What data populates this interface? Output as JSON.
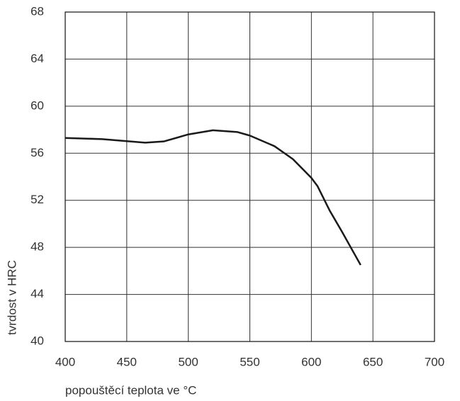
{
  "chart_data": {
    "type": "line",
    "x_label": "popouštěcí teplota ve °C",
    "y_label": "tvrdost v HRC",
    "series": [
      {
        "color": "#1a1a1a",
        "x": [
          400,
          430,
          465,
          480,
          500,
          520,
          540,
          550,
          570,
          585,
          600,
          605,
          615,
          625,
          640
        ],
        "values": [
          57.3,
          57.2,
          56.9,
          57.0,
          57.6,
          57.95,
          57.8,
          57.5,
          56.6,
          55.5,
          53.9,
          53.2,
          51.1,
          49.3,
          46.5
        ]
      }
    ],
    "xlim": [
      400,
      700
    ],
    "xticks": [
      400,
      450,
      500,
      550,
      600,
      650,
      700
    ],
    "ylim": [
      40,
      68
    ],
    "yticks": [
      40,
      44,
      48,
      52,
      56,
      60,
      64,
      68
    ],
    "grid": true
  }
}
